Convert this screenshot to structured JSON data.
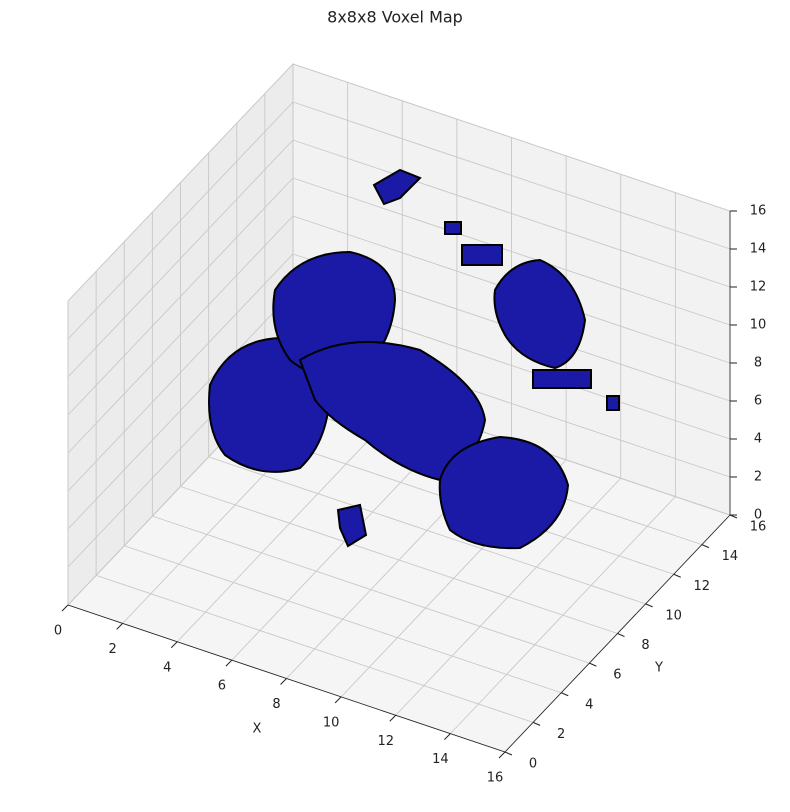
{
  "chart_data": {
    "type": "voxel",
    "title": "8x8x8 Voxel Map",
    "xlabel": "X",
    "ylabel": "Y",
    "xlim": [
      0,
      16
    ],
    "ylim": [
      0,
      16
    ],
    "zlim": [
      0,
      16
    ],
    "xticks": [
      0,
      2,
      4,
      6,
      8,
      10,
      12,
      14,
      16
    ],
    "yticks": [
      0,
      2,
      4,
      6,
      8,
      10,
      12,
      14,
      16
    ],
    "zticks": [
      0,
      2,
      4,
      6,
      8,
      10,
      12,
      14,
      16
    ],
    "color": "#1a1aa6",
    "edgecolor": "#000000",
    "grid": true
  }
}
